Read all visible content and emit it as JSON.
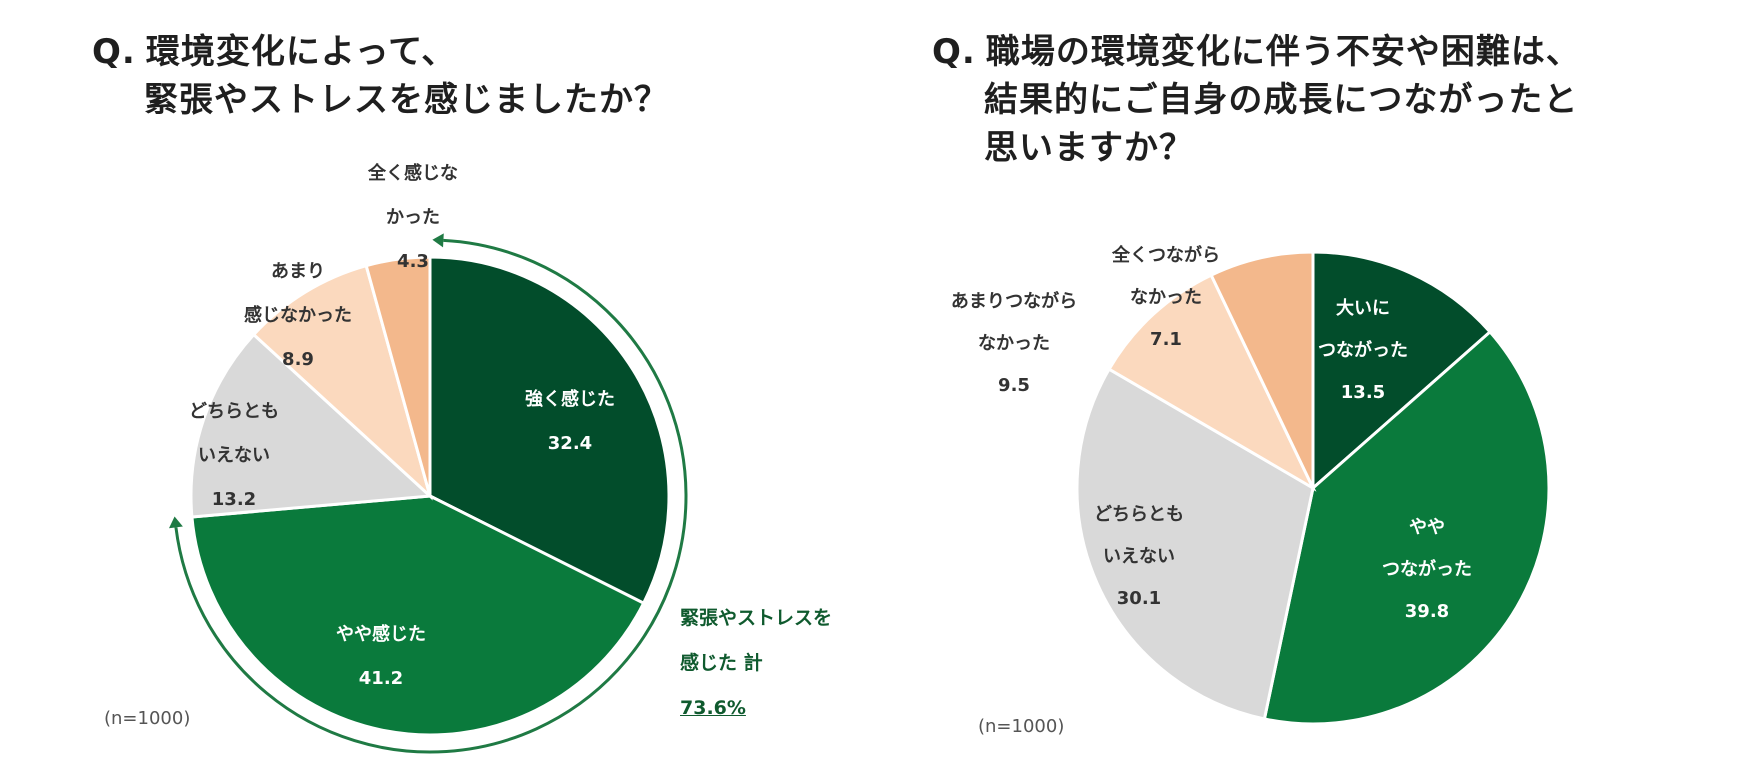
{
  "colors": {
    "dark_green": "#024d2b",
    "green": "#0a7a3c",
    "gray": "#d9d9d9",
    "light_peach": "#fbd9be",
    "peach": "#f3b88c",
    "arrow": "#1f7a44"
  },
  "chart_data": [
    {
      "type": "pie",
      "title_prefix": "Q.",
      "title_lines": [
        "環境変化によって、",
        "緊張やストレスを感じましたか？"
      ],
      "note": "(n=1000)",
      "slices": [
        {
          "label_lines": [
            "強く感じた"
          ],
          "value": 32.4,
          "display": "32.4",
          "color": "#024d2b",
          "text_color": "#ffffff"
        },
        {
          "label_lines": [
            "やや感じた"
          ],
          "value": 41.2,
          "display": "41.2",
          "color": "#0a7a3c",
          "text_color": "#ffffff"
        },
        {
          "label_lines": [
            "どちらとも",
            "いえない"
          ],
          "value": 13.2,
          "display": "13.2",
          "color": "#d9d9d9",
          "text_color": "#333333"
        },
        {
          "label_lines": [
            "あまり",
            "感じなかった"
          ],
          "value": 8.9,
          "display": "8.9",
          "color": "#fbd9be",
          "text_color": "#333333"
        },
        {
          "label_lines": [
            "全く感じな",
            "かった"
          ],
          "value": 4.3,
          "display": "4.3",
          "color": "#f3b88c",
          "text_color": "#333333"
        }
      ],
      "cumulative": {
        "label_lines": [
          "緊張やストレスを",
          "感じた 計"
        ],
        "total": "73.6%"
      }
    },
    {
      "type": "pie",
      "title_prefix": "Q.",
      "title_lines": [
        "職場の環境変化に伴う不安や困難は、",
        "結果的にご自身の成長につながったと",
        "思いますか？"
      ],
      "note": "(n=1000)",
      "slices": [
        {
          "label_lines": [
            "大いに",
            "つながった"
          ],
          "value": 13.5,
          "display": "13.5",
          "color": "#024d2b",
          "text_color": "#ffffff"
        },
        {
          "label_lines": [
            "やや",
            "つながった"
          ],
          "value": 39.8,
          "display": "39.8",
          "color": "#0a7a3c",
          "text_color": "#ffffff"
        },
        {
          "label_lines": [
            "どちらとも",
            "いえない"
          ],
          "value": 30.1,
          "display": "30.1",
          "color": "#d9d9d9",
          "text_color": "#333333"
        },
        {
          "label_lines": [
            "あまりつながら",
            "なかった"
          ],
          "value": 9.5,
          "display": "9.5",
          "color": "#fbd9be",
          "text_color": "#333333"
        },
        {
          "label_lines": [
            "全くつながら",
            "なかった"
          ],
          "value": 7.1,
          "display": "7.1",
          "color": "#f3b88c",
          "text_color": "#333333"
        }
      ]
    }
  ]
}
